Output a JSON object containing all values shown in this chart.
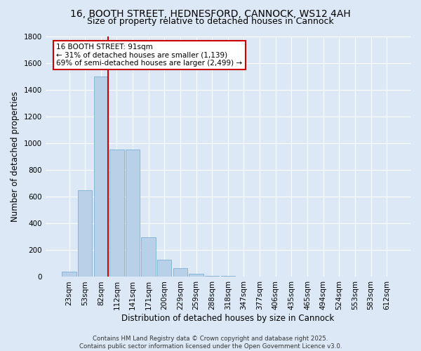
{
  "title": "16, BOOTH STREET, HEDNESFORD, CANNOCK, WS12 4AH",
  "subtitle": "Size of property relative to detached houses in Cannock",
  "xlabel": "Distribution of detached houses by size in Cannock",
  "ylabel": "Number of detached properties",
  "categories": [
    "23sqm",
    "53sqm",
    "82sqm",
    "112sqm",
    "141sqm",
    "171sqm",
    "200sqm",
    "229sqm",
    "259sqm",
    "288sqm",
    "318sqm",
    "347sqm",
    "377sqm",
    "406sqm",
    "435sqm",
    "465sqm",
    "494sqm",
    "524sqm",
    "553sqm",
    "583sqm",
    "612sqm"
  ],
  "values": [
    40,
    650,
    1500,
    950,
    950,
    295,
    130,
    65,
    25,
    10,
    10,
    0,
    0,
    0,
    0,
    0,
    0,
    0,
    0,
    0,
    0
  ],
  "bar_color": "#b8d0e8",
  "bar_edge_color": "#7aafd4",
  "vline_color": "#cc0000",
  "annotation_text": "16 BOOTH STREET: 91sqm\n← 31% of detached houses are smaller (1,139)\n69% of semi-detached houses are larger (2,499) →",
  "annotation_box_color": "#ffffff",
  "annotation_box_edge_color": "#cc0000",
  "ylim": [
    0,
    1800
  ],
  "yticks": [
    0,
    200,
    400,
    600,
    800,
    1000,
    1200,
    1400,
    1600,
    1800
  ],
  "background_color": "#dce8f5",
  "plot_bg_color": "#dce8f5",
  "grid_color": "#ffffff",
  "footer": "Contains HM Land Registry data © Crown copyright and database right 2025.\nContains public sector information licensed under the Open Government Licence v3.0.",
  "title_fontsize": 10,
  "subtitle_fontsize": 9,
  "xlabel_fontsize": 8.5,
  "ylabel_fontsize": 8.5,
  "tick_fontsize": 7.5,
  "annotation_fontsize": 7.5
}
